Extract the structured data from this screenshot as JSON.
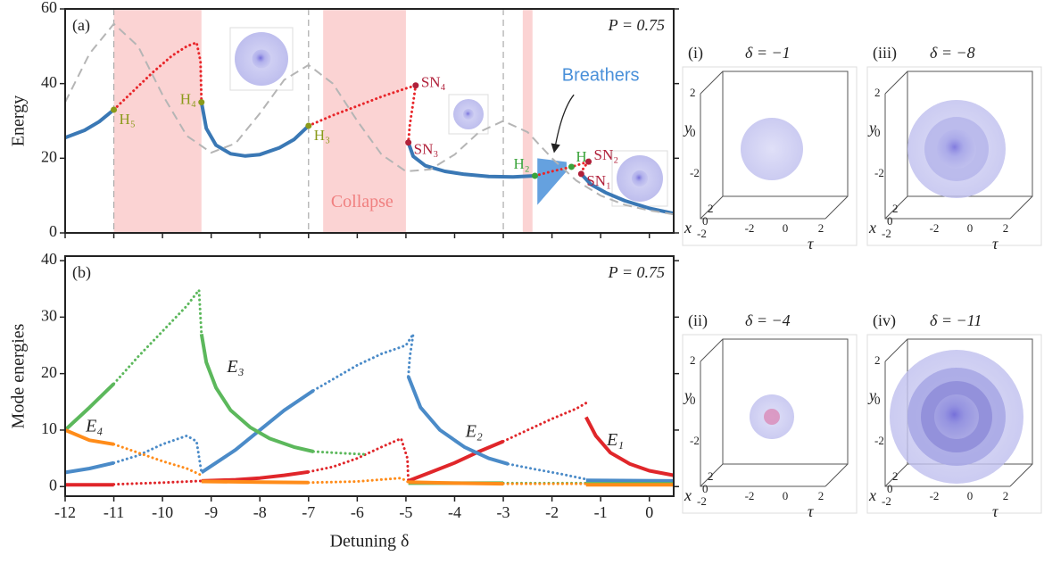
{
  "chart_data": [
    {
      "type": "line",
      "panel": "(a)",
      "ylabel": "Energy",
      "annotation": "P = 0.75",
      "region_label": "Collapse",
      "xlim": [
        -12,
        0.5
      ],
      "ylim": [
        0,
        60
      ],
      "yticks": [
        0,
        20,
        40,
        60
      ],
      "xticks": [
        -12,
        -11,
        -10,
        -9,
        -8,
        -7,
        -6,
        -5,
        -4,
        -3,
        -2,
        -1,
        0
      ],
      "show_xtick_labels": false,
      "shaded": [
        [
          -11,
          -9.2
        ],
        [
          -6.7,
          -5
        ],
        [
          -2.6,
          -2.4
        ]
      ],
      "shaded_color": "#fbd3d3",
      "vlines": [
        -11,
        -7,
        -3
      ],
      "series": [
        {
          "style": "solid",
          "color": "#3a78b5",
          "x": [
            -12,
            -11.6,
            -11.3,
            -11
          ],
          "values": [
            25.5,
            27.5,
            29.8,
            33
          ]
        },
        {
          "style": "dotted",
          "color": "#e8262a",
          "x": [
            -11,
            -10.6,
            -10.2,
            -9.8,
            -9.5,
            -9.3,
            -9.22,
            -9.2
          ],
          "values": [
            33,
            38,
            43,
            47.5,
            50,
            51,
            46,
            35
          ]
        },
        {
          "style": "solid",
          "color": "#3a78b5",
          "x": [
            -9.2,
            -9.1,
            -8.9,
            -8.6,
            -8.3,
            -8,
            -7.6,
            -7.3,
            -7
          ],
          "values": [
            35,
            28,
            23.5,
            21.2,
            20.6,
            21,
            22.8,
            25,
            28.7
          ]
        },
        {
          "style": "dotted",
          "color": "#e8262a",
          "x": [
            -7,
            -6.5,
            -6,
            -5.5,
            -5,
            -4.8,
            -4.85,
            -4.92,
            -4.95
          ],
          "values": [
            28.7,
            31.5,
            34,
            36.5,
            38.7,
            39.5,
            35,
            29,
            24.2
          ]
        },
        {
          "style": "solid",
          "color": "#3a78b5",
          "x": [
            -4.95,
            -4.85,
            -4.6,
            -4.2,
            -3.8,
            -3.3,
            -2.8,
            -2.35
          ],
          "values": [
            24.2,
            20.5,
            18,
            16.5,
            15.7,
            15.1,
            15,
            15.3
          ]
        },
        {
          "style": "dotted",
          "color": "#e8262a",
          "x": [
            -2.35,
            -2,
            -1.6,
            -1.25
          ],
          "values": [
            15.3,
            16.5,
            17.7,
            19.1
          ]
        },
        {
          "style": "dotted",
          "color": "#e8262a",
          "x": [
            -1.25,
            -1.35,
            -1.4
          ],
          "values": [
            19.1,
            17.5,
            15.8
          ]
        },
        {
          "style": "solid",
          "color": "#3a78b5",
          "x": [
            -1.4,
            -1.2,
            -0.9,
            -0.5,
            0,
            0.5
          ],
          "values": [
            15.8,
            13,
            10.8,
            8.6,
            6.6,
            5.2
          ]
        },
        {
          "style": "dashed",
          "color": "#b5b5b5",
          "x": [
            -12,
            -11.5,
            -11,
            -10.5,
            -10,
            -9.5,
            -9,
            -8.5,
            -8,
            -7.5,
            -7,
            -6.5,
            -6,
            -5.5,
            -5,
            -4.5,
            -4,
            -3.5,
            -3,
            -2.5,
            -2,
            -1.5,
            -1,
            -0.5,
            0,
            0.5
          ],
          "values": [
            35,
            48,
            56,
            50,
            37,
            26,
            21.5,
            24,
            32,
            41,
            45,
            40,
            30,
            21,
            16.5,
            17,
            21,
            27,
            30,
            27,
            20,
            14,
            10,
            7.5,
            6,
            5
          ]
        }
      ],
      "band": {
        "name": "Breathers",
        "color": "#4a90d9",
        "x": [
          -2.3,
          -2.0,
          -1.7
        ],
        "low": [
          7.5,
          12,
          16.5
        ],
        "high": [
          20,
          19.5,
          19
        ]
      },
      "points": [
        {
          "label": "H₅",
          "x": -11,
          "y": 33,
          "color": "#8a9a1a"
        },
        {
          "label": "H₄",
          "x": -9.2,
          "y": 35,
          "color": "#8a9a1a"
        },
        {
          "label": "H₃",
          "x": -7,
          "y": 28.7,
          "color": "#8a9a1a"
        },
        {
          "label": "SN₄",
          "x": -4.8,
          "y": 39.5,
          "color": "#b0203a"
        },
        {
          "label": "SN₃",
          "x": -4.95,
          "y": 24.2,
          "color": "#b0203a"
        },
        {
          "label": "H₂",
          "x": -2.35,
          "y": 15.3,
          "color": "#3aa33a"
        },
        {
          "label": "H₁",
          "x": -1.6,
          "y": 17.7,
          "color": "#3aa33a"
        },
        {
          "label": "SN₂",
          "x": -1.25,
          "y": 19.1,
          "color": "#b0203a"
        },
        {
          "label": "SN₁",
          "x": -1.4,
          "y": 15.8,
          "color": "#b0203a"
        }
      ]
    },
    {
      "type": "line",
      "panel": "(b)",
      "ylabel": "Mode energies",
      "xlabel": "Detuning  δ",
      "annotation": "P = 0.75",
      "xlim": [
        -12,
        0.5
      ],
      "ylim": [
        -1.7,
        40.8
      ],
      "yticks": [
        0,
        10,
        20,
        30,
        40
      ],
      "xticks": [
        -12,
        -11,
        -10,
        -9,
        -8,
        -7,
        -6,
        -5,
        -4,
        -3,
        -2,
        -1,
        0
      ],
      "show_xtick_labels": true,
      "series": [
        {
          "name": "E₁",
          "color": "#e0262a",
          "segments": [
            {
              "style": "solid",
              "x": [
                -12,
                -11
              ],
              "values": [
                0.3,
                0.3
              ]
            },
            {
              "style": "dotted",
              "x": [
                -11,
                -10,
                -9.2
              ],
              "values": [
                0.4,
                0.7,
                1
              ]
            },
            {
              "style": "solid",
              "x": [
                -9.2,
                -8.5,
                -8,
                -7.5,
                -7
              ],
              "values": [
                1,
                1.2,
                1.5,
                2,
                2.6
              ]
            },
            {
              "style": "dotted",
              "x": [
                -7,
                -6.5,
                -6,
                -5.5,
                -5.1,
                -4.97,
                -4.95
              ],
              "values": [
                2.6,
                3.5,
                5,
                7,
                8.5,
                5,
                1
              ]
            },
            {
              "style": "solid",
              "x": [
                -4.95,
                -4.5,
                -4,
                -3.5,
                -3
              ],
              "values": [
                1,
                2.5,
                4.2,
                6.2,
                8
              ]
            },
            {
              "style": "dotted",
              "x": [
                -3,
                -2.5,
                -2,
                -1.5,
                -1.3
              ],
              "values": [
                8,
                10,
                12,
                13.8,
                14.8
              ]
            },
            {
              "style": "solid",
              "x": [
                -1.3,
                -1.1,
                -0.8,
                -0.4,
                0,
                0.5
              ],
              "values": [
                12.3,
                9,
                6,
                4,
                2.8,
                2
              ]
            }
          ]
        },
        {
          "name": "E₂",
          "color": "#4b8bc8",
          "segments": [
            {
              "style": "solid",
              "x": [
                -12,
                -11.5,
                -11
              ],
              "values": [
                2.5,
                3.2,
                4.2
              ]
            },
            {
              "style": "dotted",
              "x": [
                -11,
                -10.5,
                -10,
                -9.5,
                -9.3,
                -9.2
              ],
              "values": [
                4.2,
                5.5,
                7.5,
                9,
                8,
                2.5
              ]
            },
            {
              "style": "solid",
              "x": [
                -9.2,
                -8.5,
                -8,
                -7.5,
                -6.9
              ],
              "values": [
                2.5,
                6.5,
                10,
                13.5,
                17
              ]
            },
            {
              "style": "dotted",
              "x": [
                -6.9,
                -6,
                -5.5,
                -5,
                -4.85,
                -4.92,
                -4.95
              ],
              "values": [
                17,
                21.5,
                23.5,
                25,
                27,
                23,
                19.5
              ]
            },
            {
              "style": "solid",
              "x": [
                -4.95,
                -4.7,
                -4.3,
                -3.8,
                -3.3,
                -2.9
              ],
              "values": [
                19.5,
                14,
                10,
                7,
                5,
                4
              ]
            },
            {
              "style": "dotted",
              "x": [
                -2.9,
                -2.3,
                -1.8,
                -1.3
              ],
              "values": [
                4,
                3,
                2.2,
                1.3
              ]
            },
            {
              "style": "solid",
              "x": [
                -1.3,
                0.5
              ],
              "values": [
                1.1,
                1
              ]
            }
          ]
        },
        {
          "name": "E₃",
          "color": "#5cb85c",
          "segments": [
            {
              "style": "solid",
              "x": [
                -12,
                -11.5,
                -11
              ],
              "values": [
                10,
                14,
                18.2
              ]
            },
            {
              "style": "dotted",
              "x": [
                -11,
                -10.5,
                -10,
                -9.5,
                -9.25,
                -9.2
              ],
              "values": [
                18.2,
                23,
                27.5,
                32,
                34.8,
                27
              ]
            },
            {
              "style": "solid",
              "x": [
                -9.2,
                -9.1,
                -8.9,
                -8.6,
                -8.2,
                -7.8,
                -7.3,
                -6.9
              ],
              "values": [
                27,
                22,
                17.5,
                13.5,
                10.5,
                8.5,
                7,
                6.2
              ]
            },
            {
              "style": "dotted",
              "x": [
                -6.9,
                -6.3,
                -5.8
              ],
              "values": [
                6.2,
                5.9,
                5.7
              ]
            },
            {
              "style": "solid",
              "x": [
                -4.95,
                -3
              ],
              "values": [
                0.6,
                0.6
              ]
            },
            {
              "style": "dotted",
              "x": [
                -3,
                -1.3
              ],
              "values": [
                0.6,
                0.6
              ]
            },
            {
              "style": "solid",
              "x": [
                -1.3,
                0.5
              ],
              "values": [
                0.5,
                0.5
              ]
            }
          ]
        },
        {
          "name": "E₄",
          "color": "#ff8c1a",
          "segments": [
            {
              "style": "solid",
              "x": [
                -12,
                -11.5,
                -11
              ],
              "values": [
                10,
                8.2,
                7.5
              ]
            },
            {
              "style": "dotted",
              "x": [
                -11,
                -10.5,
                -10,
                -9.5,
                -9.2
              ],
              "values": [
                7.5,
                6,
                4.5,
                3.2,
                2
              ]
            },
            {
              "style": "solid",
              "x": [
                -9.2,
                -8,
                -7
              ],
              "values": [
                0.9,
                0.8,
                0.7
              ]
            },
            {
              "style": "dotted",
              "x": [
                -7,
                -6,
                -5.1,
                -4.95
              ],
              "values": [
                0.7,
                0.9,
                1.5,
                0.8
              ]
            },
            {
              "style": "solid",
              "x": [
                -4.95,
                -4,
                -3
              ],
              "values": [
                0.8,
                0.6,
                0.5
              ]
            },
            {
              "style": "dotted",
              "x": [
                -3,
                -1.3
              ],
              "values": [
                0.5,
                0.5
              ]
            },
            {
              "style": "solid",
              "x": [
                -1.3,
                0.5
              ],
              "values": [
                0.3,
                0.3
              ]
            }
          ]
        }
      ]
    }
  ],
  "insets": [
    {
      "label": "(i)",
      "title": "δ = −1",
      "y_axis": "y",
      "x_axis": "x",
      "t_axis": "τ",
      "yticks": [
        "2",
        "0",
        "-2"
      ],
      "xticks": [
        "2",
        "0",
        "-2"
      ],
      "tticks": [
        "-2",
        "0",
        "2"
      ]
    },
    {
      "label": "(iii)",
      "title": "δ = −8",
      "y_axis": "y",
      "x_axis": "x",
      "t_axis": "τ",
      "yticks": [
        "2",
        "0",
        "-2"
      ],
      "xticks": [
        "2",
        "0",
        "-2"
      ],
      "tticks": [
        "-2",
        "0",
        "2"
      ]
    },
    {
      "label": "(ii)",
      "title": "δ = −4",
      "y_axis": "y",
      "x_axis": "x",
      "t_axis": "τ",
      "yticks": [
        "2",
        "0",
        "-2"
      ],
      "xticks": [
        "2",
        "0",
        "-2"
      ],
      "tticks": [
        "-2",
        "0",
        "2"
      ]
    },
    {
      "label": "(iv)",
      "title": "δ = −11",
      "y_axis": "y",
      "x_axis": "x",
      "t_axis": "τ",
      "yticks": [
        "2",
        "0",
        "-2"
      ],
      "xticks": [
        "2",
        "0",
        "-2"
      ],
      "tticks": [
        "-2",
        "0",
        "2"
      ]
    }
  ]
}
